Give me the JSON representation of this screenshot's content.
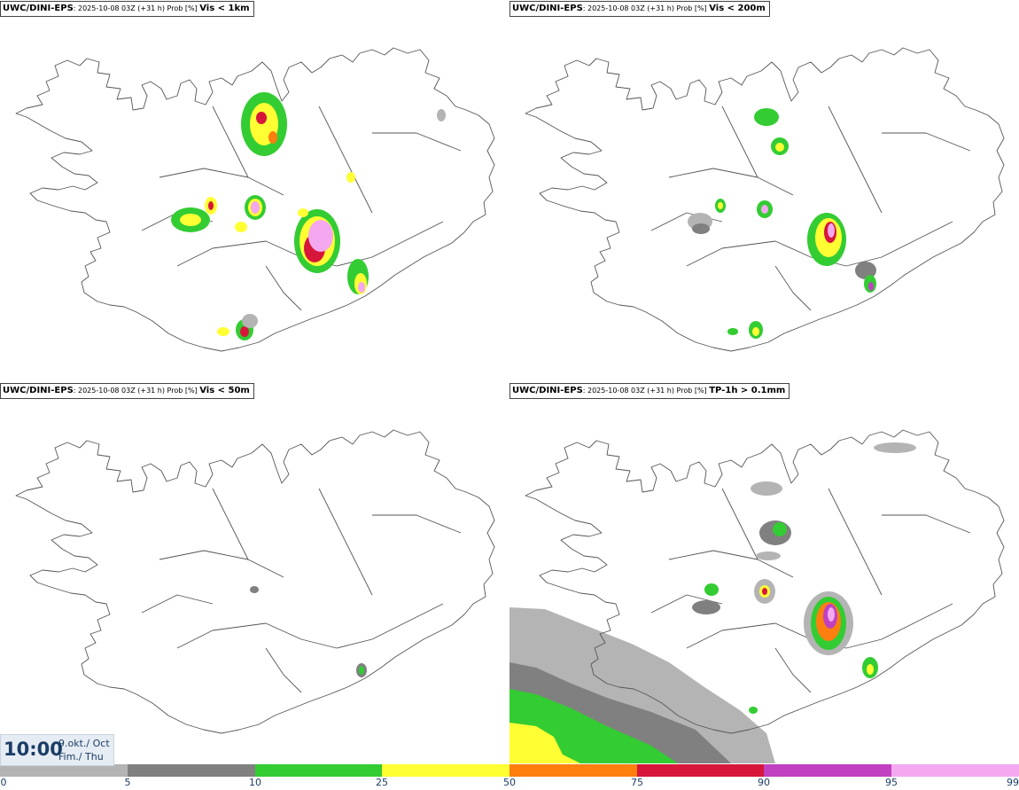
{
  "panels": [
    {
      "id": "vis1km",
      "source": "UWC/DINI-EPS",
      "meta": ": 2025-10-08 03Z (+31 h) Prob [%] ",
      "param": "Vis < 1km"
    },
    {
      "id": "vis200m",
      "source": "UWC/DINI-EPS",
      "meta": ": 2025-10-08 03Z (+31 h) Prob [%] ",
      "param": "Vis < 200m"
    },
    {
      "id": "vis50m",
      "source": "UWC/DINI-EPS",
      "meta": ": 2025-10-08 03Z (+31 h) Prob [%] ",
      "param": "Vis < 50m"
    },
    {
      "id": "tp1h",
      "source": "UWC/DINI-EPS",
      "meta": ": 2025-10-08 03Z (+31 h) Prob [%] ",
      "param": "TP-1h > 0.1mm"
    }
  ],
  "valid_time": {
    "time": "10:00",
    "date_line1": "9.okt./ Oct",
    "date_line2": "Fim./ Thu"
  },
  "colorbar": {
    "ticks": [
      "0",
      "5",
      "10",
      "25",
      "50",
      "75",
      "90",
      "95",
      "99"
    ],
    "colors": [
      "#ffffff",
      "#b4b4b4",
      "#808080",
      "#33cc33",
      "#ffff33",
      "#ff7f0e",
      "#d6163a",
      "#c040c0",
      "#f4a8f0"
    ]
  },
  "legend_colors": {
    "grey_light": "#b4b4b4",
    "grey_dark": "#808080",
    "green": "#33cc33",
    "yellow": "#ffff33",
    "orange": "#ff7f0e",
    "red": "#d6163a",
    "magenta": "#c040c0",
    "pink": "#f4a8f0"
  },
  "icons": {
    "coastline": "iceland-coastline-map"
  }
}
